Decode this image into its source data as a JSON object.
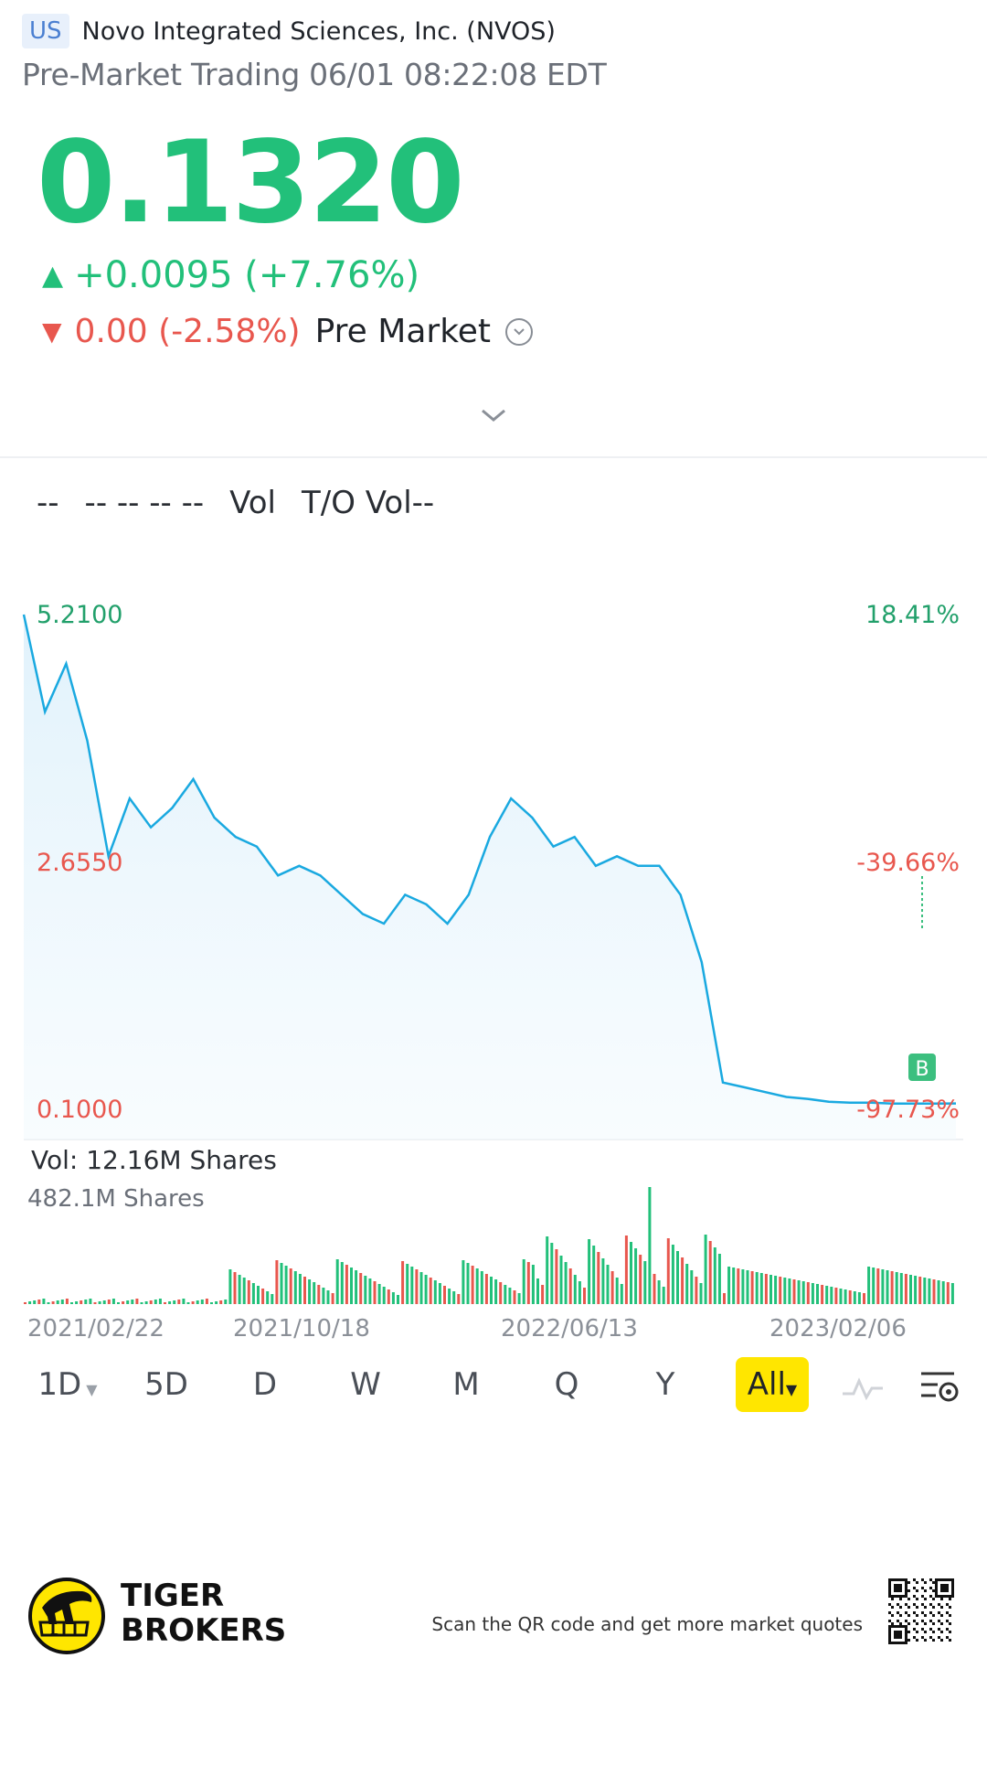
{
  "header": {
    "market_badge": "US",
    "company": "Novo Integrated Sciences, Inc. (NVOS)",
    "session_info": "Pre-Market Trading 06/01 08:22:08 EDT"
  },
  "quote": {
    "price": "0.1320",
    "change": "+0.0095 (+7.76%)",
    "premarket_change": "0.00 (-2.58%)",
    "premarket_label": "Pre Market"
  },
  "stats": {
    "items": [
      "--",
      "-- -- -- --",
      "Vol",
      "T/O Vol--"
    ]
  },
  "chart_labels": {
    "price_high": "5.2100",
    "price_mid": "2.6550",
    "price_low": "0.1000",
    "pct_high": "18.41%",
    "pct_mid": "-39.66%",
    "pct_low": "-97.73%",
    "marker": "B",
    "vol_title": "Vol:   12.16M Shares",
    "vol_scale": "482.1M Shares"
  },
  "chart_data": {
    "type": "line",
    "x_ticks": [
      "2021/02/22",
      "2021/10/18",
      "2022/06/13",
      "2023/02/06"
    ],
    "ylim": [
      0.1,
      5.21
    ],
    "y_ticks": [
      5.21,
      2.655,
      0.1
    ],
    "pct_ticks": [
      "18.41%",
      "-39.66%",
      "-97.73%"
    ],
    "series": [
      {
        "values": [
          5.21,
          4.2,
          4.7,
          3.9,
          2.7,
          3.3,
          3.0,
          3.2,
          3.5,
          3.1,
          2.9,
          2.8,
          2.5,
          2.6,
          2.5,
          2.3,
          2.1,
          2.0,
          2.3,
          2.2,
          2.0,
          2.3,
          2.9,
          3.3,
          3.1,
          2.8,
          2.9,
          2.6,
          2.7,
          2.6,
          2.6,
          2.3,
          1.6,
          0.35,
          0.3,
          0.25,
          0.2,
          0.18,
          0.15,
          0.14,
          0.14,
          0.13,
          0.13,
          0.13,
          0.132
        ]
      }
    ],
    "volume": {
      "max_label": "482.1M Shares",
      "current": "12.16M Shares"
    },
    "colors": {
      "line": "#1aa9e0",
      "up": "#22c07a",
      "down": "#e8574e"
    }
  },
  "periods": [
    "1D",
    "5D",
    "D",
    "W",
    "M",
    "Q",
    "Y",
    "All"
  ],
  "footer": {
    "brand_line1": "TIGER",
    "brand_line2": "BROKERS",
    "scan_text": "Scan the QR code and get more market quotes"
  }
}
